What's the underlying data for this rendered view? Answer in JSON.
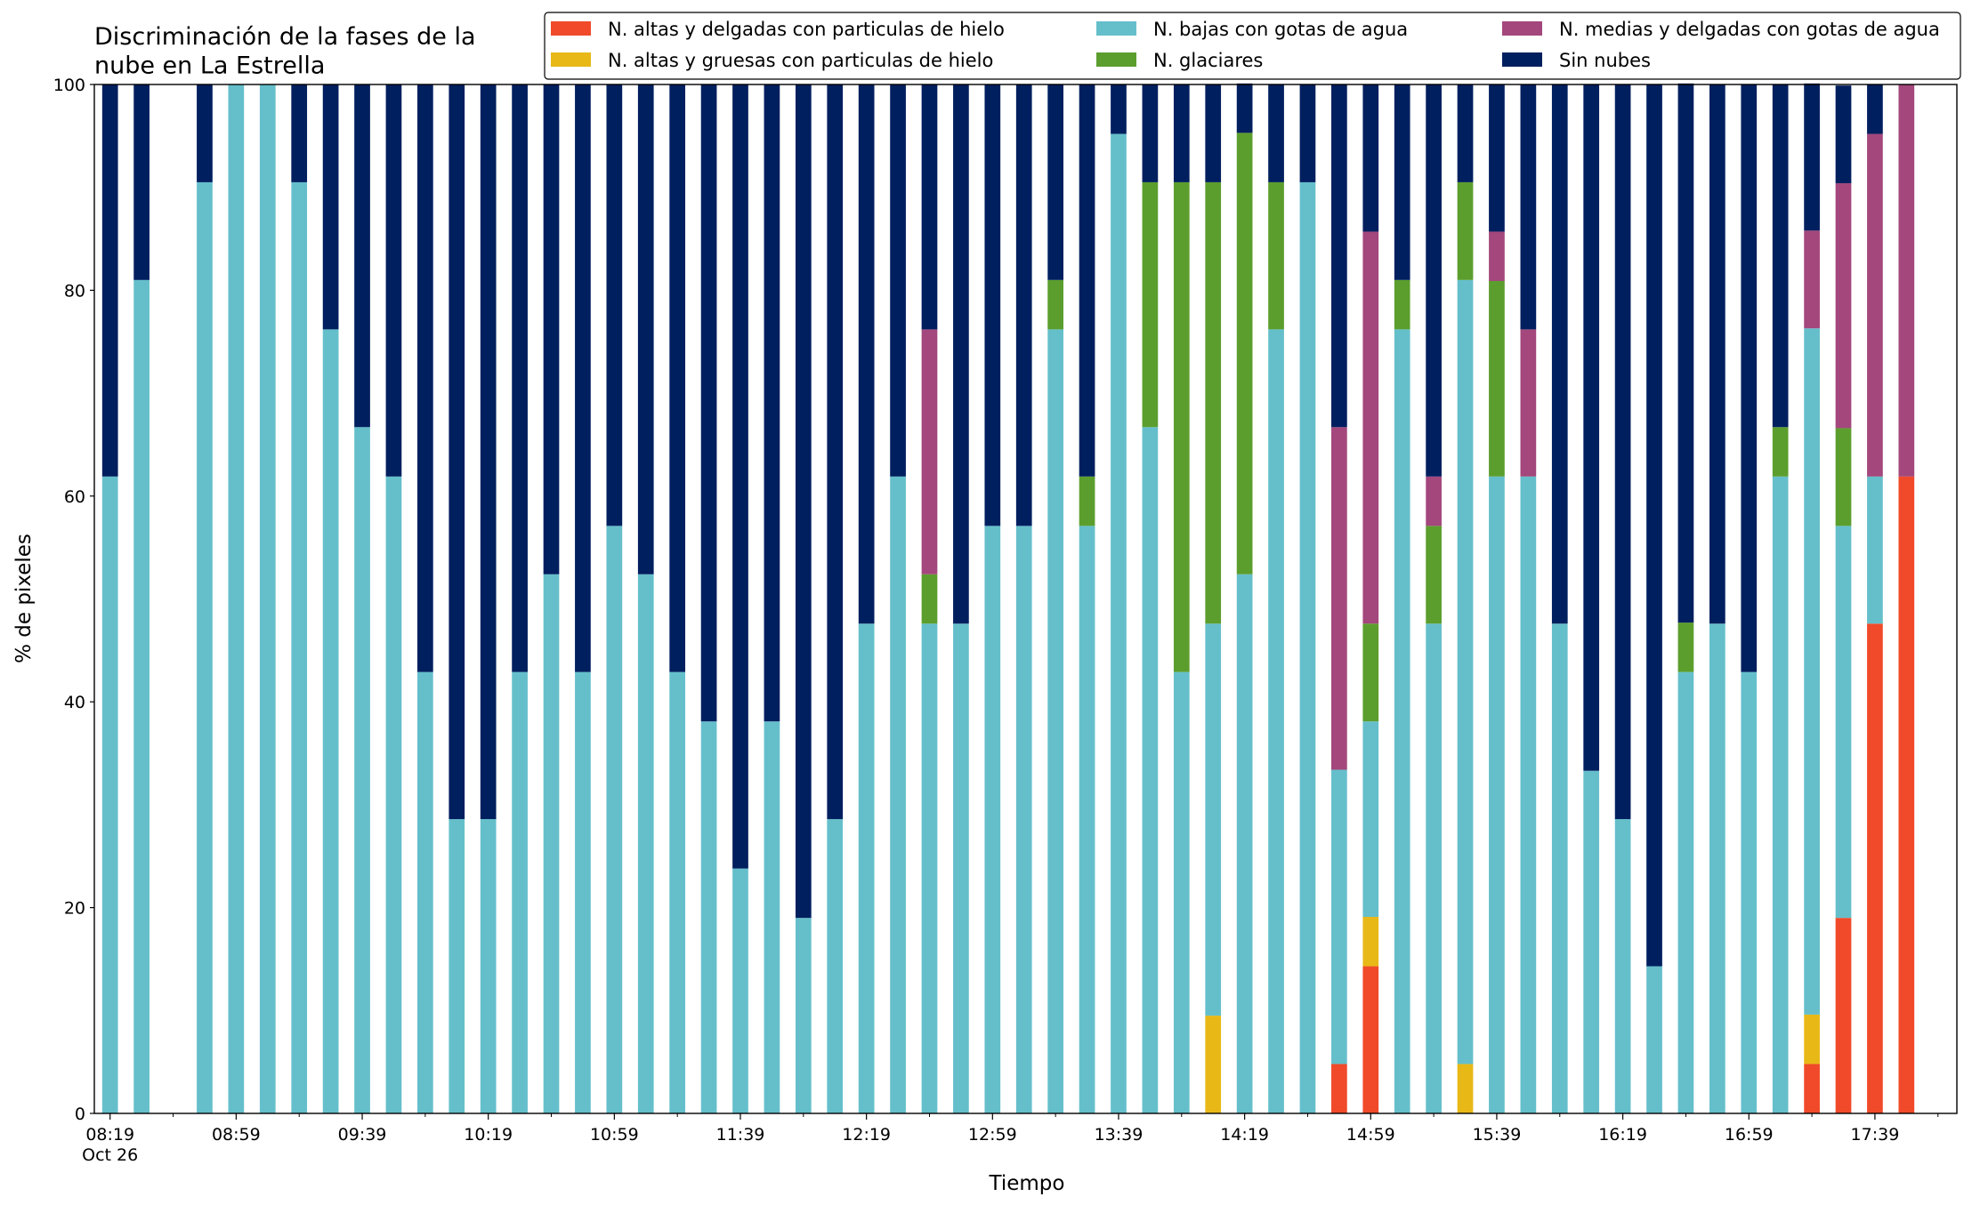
{
  "chart_data": {
    "type": "stacked_bar",
    "title": "Discriminación de la fases de la\nnube en La Estrella",
    "x_label": "Tiempo",
    "y_label": "% de pixeles",
    "x": [
      "08:19",
      "08:29",
      "08:39",
      "08:49",
      "08:59",
      "09:09",
      "09:19",
      "09:29",
      "09:39",
      "09:49",
      "09:59",
      "10:09",
      "10:19",
      "10:29",
      "10:39",
      "10:49",
      "10:59",
      "11:09",
      "11:19",
      "11:29",
      "11:39",
      "11:49",
      "11:59",
      "12:09",
      "12:19",
      "12:29",
      "12:39",
      "12:49",
      "12:59",
      "13:09",
      "13:19",
      "13:29",
      "13:39",
      "13:49",
      "13:59",
      "14:09",
      "14:19",
      "14:29",
      "14:39",
      "14:49",
      "14:59",
      "15:09",
      "15:19",
      "15:29",
      "15:39",
      "15:49",
      "15:59",
      "16:09",
      "16:19",
      "16:29",
      "16:39",
      "16:49",
      "16:59",
      "17:09",
      "17:19",
      "17:29",
      "17:39",
      "17:49"
    ],
    "xlim": [
      "08:14",
      "18:05"
    ],
    "xticks": [
      {
        "value": "08:19",
        "label": "08:19\nOct 26"
      },
      "08:59",
      "09:39",
      "10:19",
      "10:59",
      "11:39",
      "12:19",
      "12:59",
      "13:39",
      "14:19",
      "14:59",
      "15:39",
      "16:19",
      "16:59",
      "17:39"
    ],
    "xticks_minor": [
      "08:39",
      "09:19",
      "09:59",
      "10:39",
      "11:19",
      "11:59",
      "12:39",
      "13:19",
      "13:59",
      "14:39",
      "15:19",
      "15:59",
      "16:39",
      "17:19",
      "17:59"
    ],
    "ylim": [
      0,
      100
    ],
    "yticks": [
      0,
      20,
      40,
      60,
      80,
      100
    ],
    "legend_position": "top-right",
    "series": [
      {
        "name": "N. altas y delgadas con particulas de hielo",
        "color": "#f04a2a",
        "values": [
          0,
          0,
          null,
          0,
          0,
          0,
          0,
          0,
          0,
          0,
          0,
          0,
          0,
          0,
          0,
          0,
          0,
          0,
          0,
          0,
          0,
          0,
          0,
          0,
          0,
          0,
          0,
          0,
          0,
          0,
          0,
          0,
          0,
          0,
          0,
          0,
          0,
          0,
          0,
          4.8,
          14.3,
          0,
          0,
          0,
          0,
          0,
          0,
          0,
          0,
          0,
          0,
          0,
          0,
          0,
          4.8,
          19.0,
          47.6,
          61.9
        ]
      },
      {
        "name": "N. altas y gruesas con particulas de hielo",
        "color": "#e8b817",
        "values": [
          0,
          0,
          null,
          0,
          0,
          0,
          0,
          0,
          0,
          0,
          0,
          0,
          0,
          0,
          0,
          0,
          0,
          0,
          0,
          0,
          0,
          0,
          0,
          0,
          0,
          0,
          0,
          0,
          0,
          0,
          0,
          0,
          0,
          0,
          0,
          9.5,
          0,
          0,
          0,
          0,
          4.8,
          0,
          0,
          4.8,
          0,
          0,
          0,
          0,
          0,
          0,
          0,
          0,
          0,
          0,
          4.8,
          0,
          0,
          0
        ]
      },
      {
        "name": "N. bajas con gotas de agua",
        "color": "#65bfcb",
        "values": [
          61.9,
          81.0,
          null,
          90.5,
          100,
          100,
          90.5,
          76.2,
          66.7,
          61.9,
          42.9,
          28.6,
          28.6,
          42.9,
          52.4,
          42.9,
          57.1,
          52.4,
          42.9,
          38.1,
          23.8,
          38.1,
          19.0,
          28.6,
          47.6,
          61.9,
          47.6,
          47.6,
          57.1,
          57.1,
          76.2,
          57.1,
          95.2,
          66.7,
          42.9,
          38.1,
          52.4,
          76.2,
          90.5,
          28.6,
          19.0,
          76.2,
          47.6,
          76.2,
          61.9,
          61.9,
          47.6,
          33.3,
          28.6,
          14.3,
          42.9,
          47.6,
          42.9,
          61.9,
          66.7,
          38.1,
          14.3,
          0
        ]
      },
      {
        "name": "N. glaciares",
        "color": "#5c9e2d",
        "values": [
          0,
          0,
          null,
          0,
          0,
          0,
          0,
          0,
          0,
          0,
          0,
          0,
          0,
          0,
          0,
          0,
          0,
          0,
          0,
          0,
          0,
          0,
          0,
          0,
          0,
          0,
          4.8,
          0,
          0,
          0,
          4.8,
          4.8,
          0,
          23.8,
          47.6,
          42.9,
          42.9,
          14.3,
          0,
          0,
          9.5,
          4.8,
          9.5,
          9.5,
          19.0,
          0,
          0,
          0,
          0,
          0,
          4.8,
          0,
          0,
          4.8,
          0,
          9.5,
          0,
          0
        ]
      },
      {
        "name": "N. medias y delgadas con gotas de agua",
        "color": "#a3477c",
        "values": [
          0,
          0,
          null,
          0,
          0,
          0,
          0,
          0,
          0,
          0,
          0,
          0,
          0,
          0,
          0,
          0,
          0,
          0,
          0,
          0,
          0,
          0,
          0,
          0,
          0,
          0,
          23.8,
          0,
          0,
          0,
          0,
          0,
          0,
          0,
          0,
          0,
          0,
          0,
          0,
          33.3,
          38.1,
          0,
          4.8,
          0,
          4.8,
          14.3,
          0,
          0,
          0,
          0,
          0,
          0,
          0,
          0,
          9.5,
          23.8,
          33.3,
          38.1
        ]
      },
      {
        "name": "Sin nubes",
        "color": "#001f5f",
        "values": [
          38.1,
          19.0,
          null,
          9.5,
          0,
          0,
          9.5,
          23.8,
          33.3,
          38.1,
          57.1,
          71.4,
          71.4,
          57.1,
          47.6,
          57.1,
          42.9,
          47.6,
          57.1,
          61.9,
          76.2,
          61.9,
          81.0,
          71.4,
          52.4,
          38.1,
          23.8,
          52.4,
          42.9,
          42.9,
          19.0,
          38.1,
          4.8,
          9.5,
          9.5,
          9.5,
          4.8,
          9.5,
          9.5,
          33.3,
          14.3,
          19.0,
          38.1,
          9.5,
          14.3,
          23.8,
          52.4,
          66.7,
          71.4,
          85.7,
          52.4,
          52.4,
          57.1,
          33.3,
          14.3,
          9.5,
          4.8,
          0
        ]
      }
    ]
  }
}
